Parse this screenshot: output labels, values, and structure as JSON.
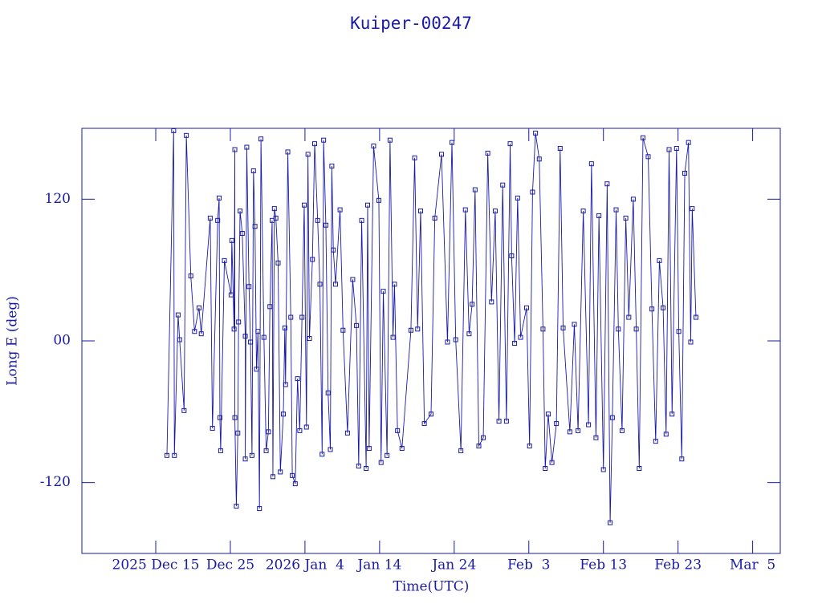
{
  "chart_data": {
    "type": "line",
    "title": "Kuiper-00247",
    "xlabel": "Time(UTC)",
    "ylabel": "Long E (deg)",
    "color": "#1a1aa8",
    "marker": "square",
    "xlim": [
      -9.9,
      83.7
    ],
    "ylim": [
      -180,
      180
    ],
    "xticks": [
      {
        "value": 0,
        "label": "2025 Dec 15"
      },
      {
        "value": 10,
        "label": "Dec 25"
      },
      {
        "value": 20,
        "label": "2026 Jan  4"
      },
      {
        "value": 30,
        "label": "Jan 14"
      },
      {
        "value": 40,
        "label": "Jan 24"
      },
      {
        "value": 50,
        "label": "Feb  3"
      },
      {
        "value": 60,
        "label": "Feb 13"
      },
      {
        "value": 70,
        "label": "Feb 23"
      },
      {
        "value": 80,
        "label": "Mar  5"
      }
    ],
    "yticks": [
      {
        "value": -120,
        "label": "-120"
      },
      {
        "value": 0,
        "label": "00"
      },
      120
    ],
    "x": [
      1.5,
      2.4,
      2.5,
      3.0,
      3.2,
      3.8,
      4.1,
      4.7,
      5.2,
      5.8,
      6.1,
      7.3,
      7.6,
      8.3,
      8.5,
      8.6,
      8.7,
      9.2,
      10.1,
      10.2,
      10.5,
      10.6,
      10.6,
      10.8,
      11.0,
      11.1,
      11.3,
      11.6,
      12.0,
      12.0,
      12.2,
      12.5,
      12.7,
      12.9,
      13.1,
      13.3,
      13.5,
      13.7,
      13.9,
      14.1,
      14.5,
      14.8,
      15.1,
      15.3,
      15.6,
      15.7,
      15.9,
      16.1,
      16.4,
      16.7,
      17.1,
      17.3,
      17.4,
      17.7,
      18.1,
      18.3,
      18.7,
      19.0,
      19.3,
      19.6,
      19.9,
      20.2,
      20.4,
      20.6,
      21.0,
      21.3,
      21.7,
      22.0,
      22.3,
      22.5,
      22.8,
      23.1,
      23.4,
      23.6,
      23.8,
      24.1,
      24.7,
      25.1,
      25.7,
      26.4,
      26.9,
      27.2,
      27.6,
      28.2,
      28.4,
      28.6,
      29.2,
      29.9,
      30.2,
      30.5,
      31.0,
      31.4,
      31.8,
      32.0,
      32.4,
      33.0,
      34.2,
      34.7,
      35.1,
      35.5,
      36.0,
      36.9,
      37.4,
      38.3,
      39.1,
      39.7,
      40.2,
      40.9,
      41.5,
      42.0,
      42.4,
      42.8,
      43.3,
      43.9,
      44.5,
      45.0,
      45.5,
      46.0,
      46.5,
      47.0,
      47.5,
      47.7,
      48.1,
      48.5,
      48.9,
      49.7,
      50.1,
      50.5,
      50.9,
      51.4,
      51.9,
      52.2,
      52.6,
      53.1,
      53.7,
      54.2,
      54.6,
      55.5,
      56.1,
      56.6,
      57.3,
      58.0,
      58.4,
      59.0,
      59.4,
      60.0,
      60.5,
      60.9,
      61.2,
      61.7,
      62.0,
      62.5,
      63.0,
      63.4,
      64.0,
      64.4,
      64.8,
      65.3,
      66.0,
      66.5,
      67.0,
      67.5,
      68.0,
      68.4,
      68.8,
      69.2,
      69.8,
      70.1,
      70.5,
      70.9,
      71.4,
      71.7,
      71.9,
      72.4
    ],
    "values": [
      -97,
      178,
      -97,
      22,
      1,
      -59,
      174,
      55,
      8,
      28,
      6,
      104,
      -74,
      102,
      121,
      -65,
      -93,
      68,
      39,
      85,
      10,
      162,
      -65,
      -140,
      -78,
      16,
      110,
      91,
      4,
      -100,
      164,
      46,
      -1,
      -97,
      144,
      97,
      -24,
      8,
      -142,
      171,
      3,
      -93,
      -77,
      29,
      102,
      -115,
      112,
      104,
      66,
      -111,
      -62,
      11,
      -37,
      160,
      20,
      -114,
      -121,
      -32,
      -76,
      20,
      115,
      -73,
      158,
      2,
      69,
      167,
      102,
      48,
      -96,
      170,
      98,
      -44,
      -92,
      148,
      77,
      48,
      111,
      9,
      -78,
      52,
      13,
      -106,
      102,
      -108,
      115,
      -91,
      165,
      119,
      -103,
      42,
      -97,
      170,
      3,
      48,
      -76,
      -91,
      9,
      155,
      10,
      110,
      -70,
      -62,
      104,
      158,
      -1,
      168,
      1,
      -93,
      111,
      6,
      31,
      128,
      -89,
      -82,
      159,
      33,
      110,
      -68,
      132,
      -68,
      167,
      72,
      -2,
      121,
      3,
      28,
      -89,
      126,
      176,
      154,
      10,
      -108,
      -62,
      -103,
      -70,
      163,
      11,
      -77,
      14,
      -76,
      110,
      -71,
      150,
      -82,
      106,
      -109,
      133,
      -154,
      -65,
      111,
      10,
      -76,
      104,
      20,
      120,
      10,
      -108,
      172,
      156,
      27,
      -85,
      68,
      28,
      -79,
      162,
      -62,
      163,
      8,
      -100,
      142,
      168,
      -1,
      112,
      20
    ]
  }
}
